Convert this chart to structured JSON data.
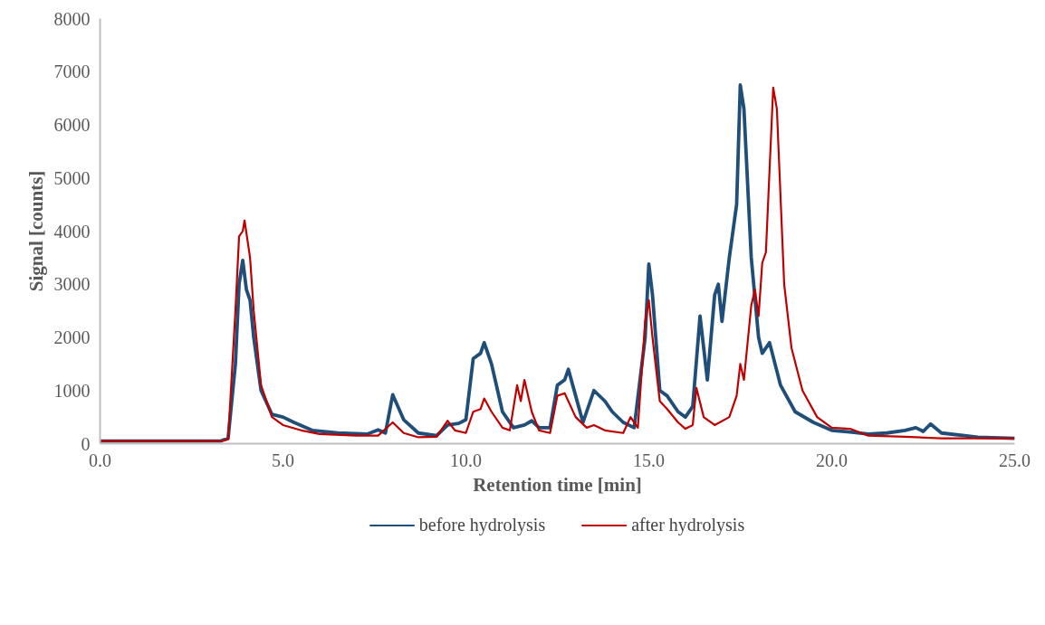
{
  "chart_data": {
    "type": "line",
    "xlabel": "Retention time [min]",
    "ylabel": "Signal [counts]",
    "xlim": [
      0,
      25
    ],
    "xticks": [
      {
        "value": 0,
        "label": "0.0"
      },
      {
        "value": 5,
        "label": "5.0"
      },
      {
        "value": 10,
        "label": "10.0"
      },
      {
        "value": 15,
        "label": "15.0"
      },
      {
        "value": 20,
        "label": "20.0"
      },
      {
        "value": 25,
        "label": "25.0"
      }
    ],
    "ylim": [
      0,
      8000
    ],
    "yticks": [
      0,
      1000,
      2000,
      3000,
      4000,
      5000,
      6000,
      7000,
      8000
    ],
    "grid": false,
    "legend": "bottom",
    "marker": "none",
    "line_style": "solid",
    "series": [
      {
        "name": "before hydrolysis",
        "color": "#1f4e79",
        "x": [
          0,
          3.3,
          3.5,
          3.7,
          3.8,
          3.9,
          4.0,
          4.1,
          4.2,
          4.4,
          4.7,
          5.0,
          5.3,
          5.8,
          6.5,
          7.3,
          7.6,
          7.8,
          8.0,
          8.3,
          8.7,
          9.2,
          9.5,
          9.8,
          10.0,
          10.2,
          10.4,
          10.5,
          10.7,
          11.0,
          11.3,
          11.6,
          11.8,
          12.0,
          12.3,
          12.5,
          12.7,
          12.8,
          13.0,
          13.2,
          13.5,
          13.8,
          14.0,
          14.3,
          14.6,
          14.9,
          15.0,
          15.1,
          15.3,
          15.5,
          15.8,
          16.0,
          16.2,
          16.4,
          16.6,
          16.8,
          16.9,
          17.0,
          17.2,
          17.4,
          17.5,
          17.6,
          17.8,
          18.0,
          18.1,
          18.3,
          18.6,
          19.0,
          19.5,
          20.0,
          20.5,
          21.0,
          21.5,
          22.0,
          22.3,
          22.5,
          22.7,
          23.0,
          24.0,
          25.0
        ],
        "values": [
          50,
          50,
          100,
          1500,
          3000,
          3450,
          2900,
          2700,
          2000,
          1000,
          550,
          500,
          400,
          250,
          200,
          180,
          260,
          200,
          920,
          450,
          200,
          150,
          350,
          380,
          450,
          1600,
          1700,
          1900,
          1500,
          600,
          300,
          350,
          430,
          300,
          300,
          1100,
          1200,
          1400,
          900,
          400,
          1000,
          800,
          600,
          400,
          300,
          2000,
          3380,
          2800,
          1000,
          900,
          600,
          500,
          700,
          2400,
          1200,
          2800,
          3000,
          2300,
          3500,
          4500,
          6750,
          6300,
          3500,
          2000,
          1700,
          1900,
          1100,
          600,
          400,
          250,
          220,
          180,
          200,
          250,
          300,
          230,
          370,
          200,
          120,
          100
        ]
      },
      {
        "name": "after hydrolysis",
        "color": "#c00000",
        "x": [
          0,
          3.3,
          3.5,
          3.7,
          3.8,
          3.9,
          3.95,
          4.1,
          4.2,
          4.4,
          4.7,
          5.0,
          5.5,
          6.0,
          7.0,
          7.6,
          8.0,
          8.3,
          8.7,
          9.2,
          9.5,
          9.7,
          10.0,
          10.2,
          10.4,
          10.5,
          10.7,
          11.0,
          11.2,
          11.4,
          11.5,
          11.6,
          11.8,
          12.0,
          12.3,
          12.5,
          12.7,
          13.0,
          13.3,
          13.5,
          13.8,
          14.3,
          14.5,
          14.7,
          14.9,
          15.0,
          15.1,
          15.3,
          15.5,
          15.8,
          16.0,
          16.2,
          16.3,
          16.5,
          16.8,
          17.2,
          17.4,
          17.5,
          17.6,
          17.8,
          17.9,
          18.0,
          18.1,
          18.2,
          18.4,
          18.5,
          18.7,
          18.9,
          19.2,
          19.6,
          20.0,
          20.5,
          21.0,
          22.0,
          23.0,
          25.0
        ],
        "values": [
          50,
          50,
          80,
          2500,
          3900,
          4000,
          4200,
          3500,
          2500,
          1100,
          500,
          350,
          250,
          180,
          150,
          150,
          400,
          200,
          120,
          130,
          430,
          250,
          200,
          600,
          650,
          850,
          600,
          300,
          250,
          1100,
          800,
          1200,
          600,
          250,
          200,
          900,
          950,
          500,
          300,
          350,
          250,
          200,
          500,
          300,
          2300,
          2700,
          2000,
          800,
          650,
          400,
          280,
          350,
          1050,
          500,
          350,
          500,
          900,
          1500,
          1200,
          2600,
          2900,
          2400,
          3400,
          3600,
          6700,
          6300,
          3000,
          1800,
          1000,
          500,
          300,
          280,
          150,
          130,
          100,
          100
        ]
      }
    ]
  }
}
